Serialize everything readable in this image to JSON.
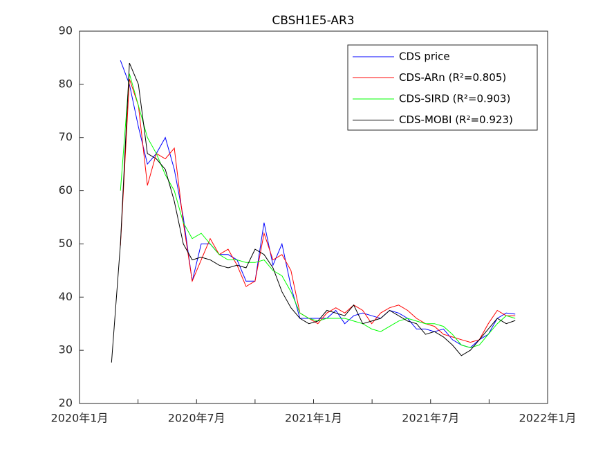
{
  "chart_data": {
    "type": "line",
    "title": "CBSH1E5-AR3",
    "x": [
      1.64,
      2.1,
      2.56,
      3.02,
      3.48,
      3.94,
      4.4,
      4.86,
      5.32,
      5.78,
      6.24,
      6.7,
      7.16,
      7.62,
      8.08,
      8.54,
      9.0,
      9.46,
      9.92,
      10.38,
      10.84,
      11.3,
      11.76,
      12.22,
      12.68,
      13.14,
      13.6,
      14.06,
      14.52,
      14.98,
      15.44,
      15.9,
      16.36,
      16.82,
      17.28,
      17.74,
      18.2,
      18.66,
      19.12,
      19.58,
      20.04,
      20.5,
      20.96,
      21.42,
      21.88,
      22.34
    ],
    "xlim": [
      0,
      24
    ],
    "xticks": [
      {
        "value": 0,
        "label": "2020年1月"
      },
      {
        "value": 6,
        "label": "2020年7月"
      },
      {
        "value": 12,
        "label": "2021年1月"
      },
      {
        "value": 18,
        "label": "2021年7月"
      },
      {
        "value": 24,
        "label": "2022年1月"
      }
    ],
    "xminor_ticks": [
      3,
      9,
      15,
      21
    ],
    "ylim": [
      20,
      90
    ],
    "yticks": [
      20,
      30,
      40,
      50,
      60,
      70,
      80,
      90
    ],
    "grid": false,
    "legend": "upper right",
    "series": [
      {
        "name": "CDS price",
        "color": "#0000ff",
        "values": [
          null,
          84.5,
          80,
          72,
          65,
          67,
          70,
          64,
          55,
          43,
          50,
          50,
          48,
          48,
          47,
          43,
          43,
          54,
          46,
          50,
          42,
          36,
          36,
          36,
          36,
          37.5,
          35,
          36.5,
          37,
          36.5,
          36,
          37.5,
          37,
          36,
          34,
          34,
          33.5,
          34,
          32,
          31,
          30.5,
          32,
          33,
          36,
          37,
          36.8
        ]
      },
      {
        "name": "CDS-ARn   (R²=0.805)",
        "color": "#ff0000",
        "values": [
          null,
          49.7,
          81,
          76,
          61,
          67,
          66,
          68,
          54,
          43,
          47,
          51,
          48,
          49,
          46,
          42,
          43,
          52,
          47,
          48,
          45,
          37,
          36,
          35,
          37,
          38,
          37,
          38.5,
          37.5,
          35,
          37,
          38,
          38.5,
          37.5,
          36,
          35,
          34.5,
          33,
          32.5,
          32,
          31.5,
          32,
          35,
          37.5,
          36.5,
          36.5
        ]
      },
      {
        "name": "CDS-SIRD (R²=0.903)",
        "color": "#00ff00",
        "values": [
          null,
          60,
          82,
          76,
          70,
          67,
          63,
          60,
          54,
          51,
          52,
          50,
          48,
          47,
          47,
          46.5,
          46.5,
          47,
          45,
          44,
          41,
          37,
          36,
          35.5,
          36,
          36,
          36,
          35.5,
          35,
          34,
          33.5,
          34.5,
          35.5,
          36,
          35.5,
          35,
          35,
          34.5,
          33,
          31,
          30.5,
          31,
          33,
          35,
          36.5,
          36
        ]
      },
      {
        "name": "CDS-MOBI (R²=0.923)",
        "color": "#000000",
        "values": [
          27.7,
          50,
          84,
          80,
          67,
          66,
          64,
          58,
          50,
          47,
          47.5,
          47,
          46,
          45.5,
          46,
          45.5,
          49,
          48,
          45.5,
          41,
          38,
          36,
          35,
          35.5,
          37.5,
          37,
          36.5,
          38.5,
          35,
          35.5,
          36,
          37.5,
          36.5,
          35.5,
          35,
          33,
          33.5,
          32.5,
          31,
          29,
          30,
          32,
          34,
          36,
          35,
          35.6
        ]
      }
    ]
  }
}
